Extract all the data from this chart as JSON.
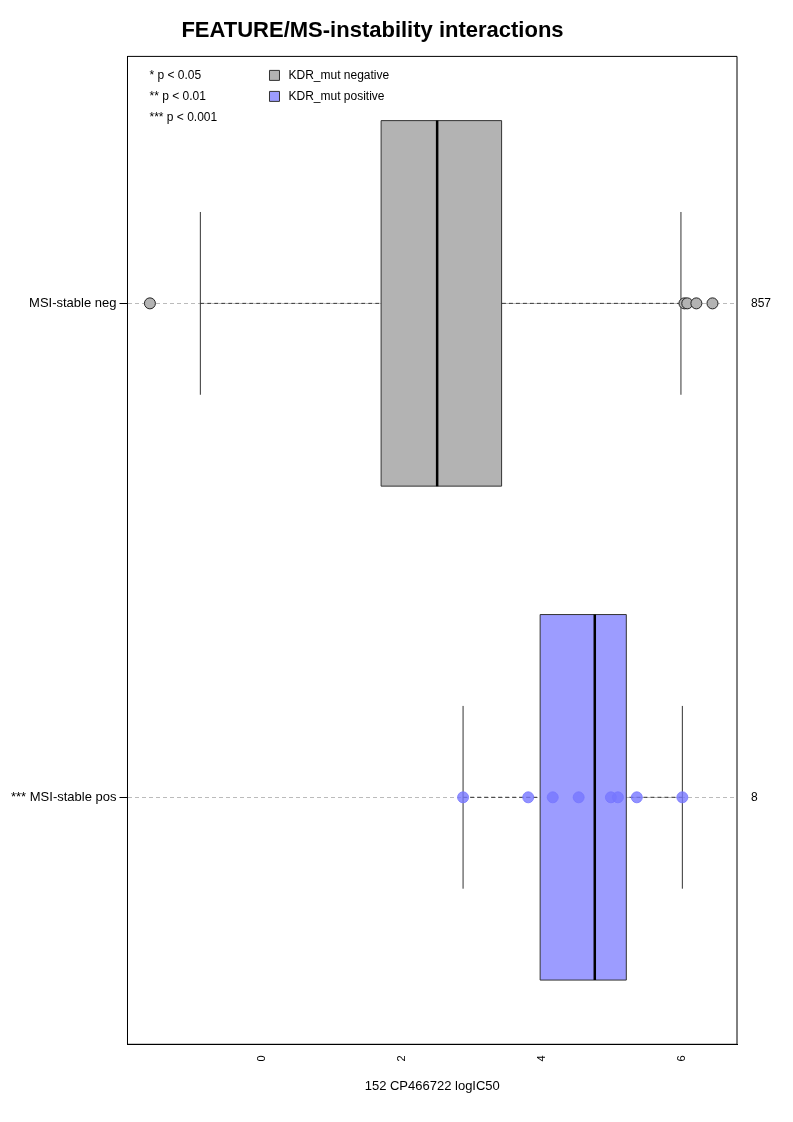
{
  "chart_data": {
    "type": "box",
    "orientation": "horizontal",
    "title": "FEATURE/MS-instability interactions",
    "xlabel": "152 CP466722 logIC50",
    "categories": [
      "MSI-stable neg",
      "*** MSI-stable pos"
    ],
    "series": [
      {
        "name": "KDR_mut negative",
        "color": "#b3b3b3",
        "boxes": [
          {
            "low": -0.88,
            "q1": 1.7,
            "median": 2.5,
            "q3": 3.42,
            "high": 5.98,
            "outliers": [
              -1.6,
              6.03,
              6.07,
              6.2,
              6.43
            ]
          },
          null
        ]
      },
      {
        "name": "KDR_mut positive",
        "color": "#9c9cff",
        "boxes": [
          null,
          {
            "low": 2.87,
            "q1": 3.97,
            "median": 4.75,
            "q3": 5.2,
            "high": 6.0
          }
        ]
      },
      {
        "type": "scatter",
        "color": "#7777ff",
        "x": [
          "*** MSI-stable pos",
          "*** MSI-stable pos",
          "*** MSI-stable pos",
          "*** MSI-stable pos",
          "*** MSI-stable pos",
          "*** MSI-stable pos",
          "*** MSI-stable pos",
          "*** MSI-stable pos"
        ],
        "values": [
          2.87,
          3.8,
          4.15,
          4.52,
          4.98,
          5.08,
          5.35,
          6.0
        ]
      }
    ],
    "xlim": [
      -1.92,
      6.78
    ],
    "xticks": [
      0,
      2,
      4,
      6
    ],
    "grid": "y",
    "legend": "top left",
    "annotations": [
      "* p < 0.05",
      "** p < 0.01",
      "*** p < 0.001",
      "857",
      "8"
    ]
  }
}
